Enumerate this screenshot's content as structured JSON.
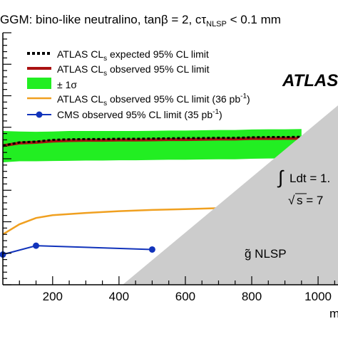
{
  "chart_data": {
    "type": "line",
    "title_prefix": "GGM: bino-like neutralino, tan",
    "title_beta": "β",
    "title_mid": " = 2, cτ",
    "title_sub": "NLSP",
    "title_suffix": " < 0.1 mm",
    "xlabel_fragment": "m",
    "x_ticks": [
      "200",
      "400",
      "600",
      "800",
      "1000"
    ],
    "xlim": [
      50,
      1060
    ],
    "ylim": [
      0,
      1
    ],
    "legend": {
      "expected": "ATLAS CL",
      "expected_suffix": " expected 95% CL limit",
      "observed": "ATLAS CL",
      "observed_suffix": " observed 95% CL limit",
      "band": "± 1σ",
      "atlas36": "ATLAS CL",
      "atlas36_suffix": " observed 95% CL limit (36 pb",
      "atlas36_exp": "-1",
      "atlas36_close": ")",
      "cms": "CMS observed 95% CL limit (35 pb",
      "cms_exp": "-1",
      "cms_close": ")",
      "cls_sub": "s"
    },
    "atlas_label": "ATLAS",
    "lumi_label": "Ldt = 1.",
    "sqrt_label": "s = 7",
    "nlsp_label": "g̃ NLSP",
    "colors": {
      "band": "#22ee22",
      "observed": "#aa1111",
      "expected": "#000000",
      "atlas36": "#f0a020",
      "cms": "#1133bb",
      "excluded": "#cccccc"
    },
    "series": [
      {
        "key": "expected",
        "x": [
          50,
          100,
          150,
          200,
          250,
          300,
          350,
          400,
          450,
          500,
          550,
          600,
          650,
          700,
          750,
          800,
          850,
          900,
          950
        ],
        "y": [
          0.552,
          0.565,
          0.568,
          0.575,
          0.577,
          0.578,
          0.578,
          0.579,
          0.579,
          0.58,
          0.581,
          0.582,
          0.582,
          0.583,
          0.583,
          0.585,
          0.586,
          0.586,
          0.587
        ]
      },
      {
        "key": "observed",
        "x": [
          50,
          100,
          150,
          200,
          250,
          300,
          350,
          400,
          450,
          500,
          550,
          600,
          650,
          700,
          750,
          800,
          850,
          900,
          950
        ],
        "y": [
          0.552,
          0.562,
          0.565,
          0.57,
          0.572,
          0.573,
          0.573,
          0.574,
          0.574,
          0.575,
          0.576,
          0.576,
          0.577,
          0.578,
          0.578,
          0.58,
          0.58,
          0.581,
          0.581
        ]
      },
      {
        "key": "band",
        "x": [
          50,
          100,
          150,
          200,
          250,
          300,
          350,
          400,
          450,
          500,
          550,
          600,
          650,
          700,
          750,
          800,
          850,
          900,
          950
        ],
        "upper": [
          0.61,
          0.608,
          0.607,
          0.608,
          0.61,
          0.61,
          0.61,
          0.61,
          0.61,
          0.611,
          0.612,
          0.612,
          0.613,
          0.614,
          0.614,
          0.616,
          0.617,
          0.617,
          0.618
        ],
        "lower": [
          0.486,
          0.49,
          0.49,
          0.491,
          0.492,
          0.493,
          0.493,
          0.494,
          0.494,
          0.495,
          0.496,
          0.496,
          0.497,
          0.498,
          0.498,
          0.5,
          0.501,
          0.501,
          0.502
        ]
      },
      {
        "key": "atlas36",
        "x": [
          50,
          100,
          150,
          200,
          300,
          400,
          500,
          600,
          700,
          800,
          900
        ],
        "y": [
          0.2,
          0.24,
          0.265,
          0.276,
          0.285,
          0.292,
          0.297,
          0.3,
          0.304,
          0.307,
          0.308
        ]
      },
      {
        "key": "cms",
        "x": [
          50,
          150,
          500
        ],
        "y": [
          0.12,
          0.155,
          0.14
        ]
      }
    ]
  }
}
